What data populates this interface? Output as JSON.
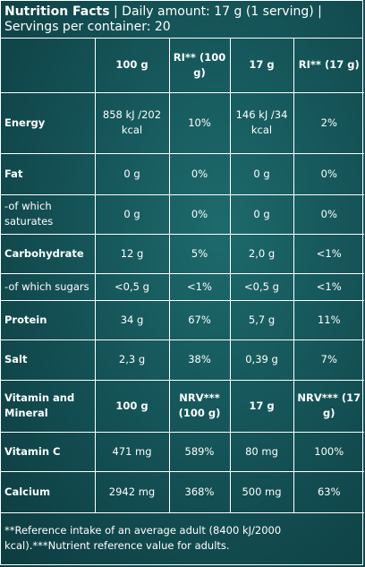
{
  "header": {
    "title": "Nutrition Facts",
    "daily_amount": "| Daily amount: 17 g (1 serving) |",
    "servings": "Servings per container: 20"
  },
  "columns": [
    "",
    "100 g",
    "RI** (100 g)",
    "17 g",
    "RI** (17 g)"
  ],
  "rows": [
    {
      "label": "Energy",
      "v100": "858 kJ /202 kcal",
      "ri100": "10%",
      "v17": "146 kJ /34 kcal",
      "ri17": "2%"
    },
    {
      "label": "Fat",
      "v100": "0 g",
      "ri100": "0%",
      "v17": "0 g",
      "ri17": "0%"
    },
    {
      "label": "-of which saturates",
      "v100": "0 g",
      "ri100": "0%",
      "v17": "0 g",
      "ri17": "0%"
    },
    {
      "label": "Carbohydrate",
      "v100": "12 g",
      "ri100": "5%",
      "v17": "2,0 g",
      "ri17": "<1%"
    },
    {
      "label": "-of which sugars",
      "v100": "<0,5 g",
      "ri100": "<1%",
      "v17": "<0,5 g",
      "ri17": "<1%"
    },
    {
      "label": "Protein",
      "v100": "34 g",
      "ri100": "67%",
      "v17": "5,7 g",
      "ri17": "11%"
    },
    {
      "label": "Salt",
      "v100": "2,3 g",
      "ri100": "38%",
      "v17": "0,39 g",
      "ri17": "7%"
    }
  ],
  "vitamin_header": [
    "Vitamin and Mineral",
    "100 g",
    "NRV*** (100 g)",
    "17 g",
    "NRV*** (17 g)"
  ],
  "vitamin_rows": [
    {
      "label": "Vitamin C",
      "v100": "471 mg",
      "nrv100": "589%",
      "v17": "80 mg",
      "nrv17": "100%"
    },
    {
      "label": "Calcium",
      "v100": "2942 mg",
      "nrv100": "368%",
      "v17": "500 mg",
      "nrv17": "63%"
    }
  ],
  "footnote": "**Reference intake of an average adult (8400 kJ/2000 kcal).***Nutrient reference value for adults."
}
